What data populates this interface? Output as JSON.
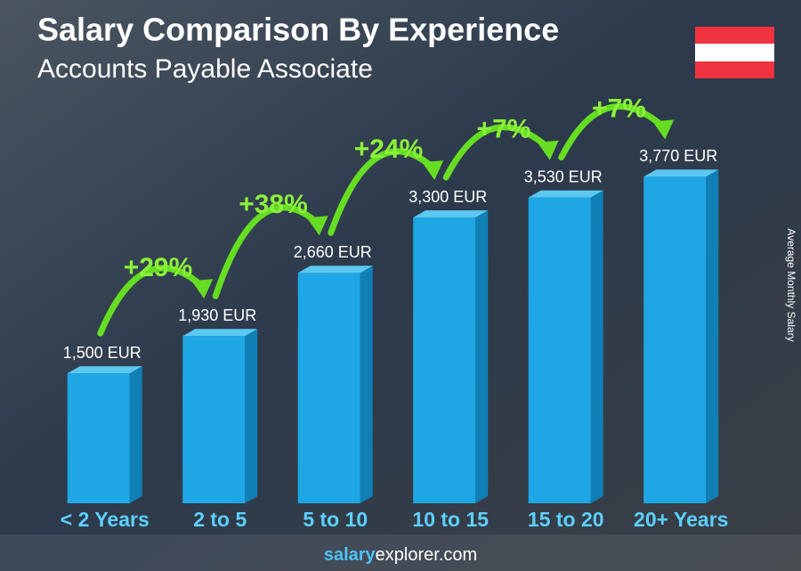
{
  "chart_data": {
    "type": "bar3d",
    "title": "Salary Comparison By Experience",
    "subtitle": "Accounts Payable Associate",
    "y_label": "Average Monthly Salary",
    "categories": [
      "< 2 Years",
      "2 to 5",
      "5 to 10",
      "10 to 15",
      "15 to 20",
      "20+ Years"
    ],
    "values": [
      1500,
      1930,
      2660,
      3300,
      3530,
      3770
    ],
    "value_labels": [
      "1,500 EUR",
      "1,930 EUR",
      "2,660 EUR",
      "3,300 EUR",
      "3,530 EUR",
      "3,770 EUR"
    ],
    "changes": [
      "+29%",
      "+38%",
      "+24%",
      "+7%",
      "+7%"
    ],
    "color": "#1ea7e4",
    "ylim": [
      0,
      4000
    ],
    "source": [
      "salary",
      "explorer.com"
    ]
  }
}
